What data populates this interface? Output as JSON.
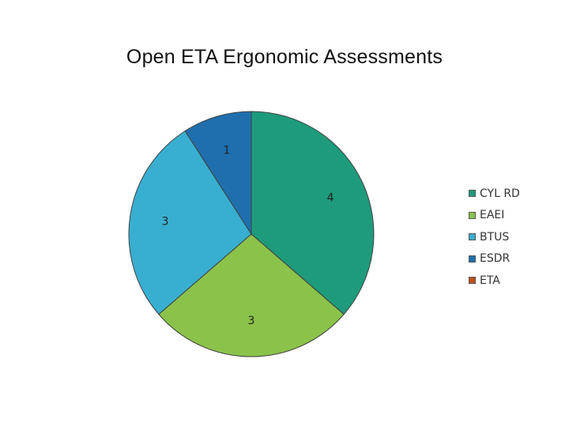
{
  "chart_data": {
    "type": "pie",
    "title": "Open ETA Ergonomic Assessments",
    "categories": [
      "CYL RD",
      "EAEI",
      "BTUS",
      "ESDR",
      "ETA"
    ],
    "values": [
      4,
      3,
      3,
      1,
      0
    ],
    "data_labels": [
      "4",
      "3",
      "3",
      "1",
      ""
    ],
    "colors": [
      "#1e9b7a",
      "#8bc34a",
      "#38afd0",
      "#1f6fae",
      "#c0501f"
    ],
    "legend_position": "right",
    "start_angle_deg": 0,
    "direction": "clockwise"
  }
}
